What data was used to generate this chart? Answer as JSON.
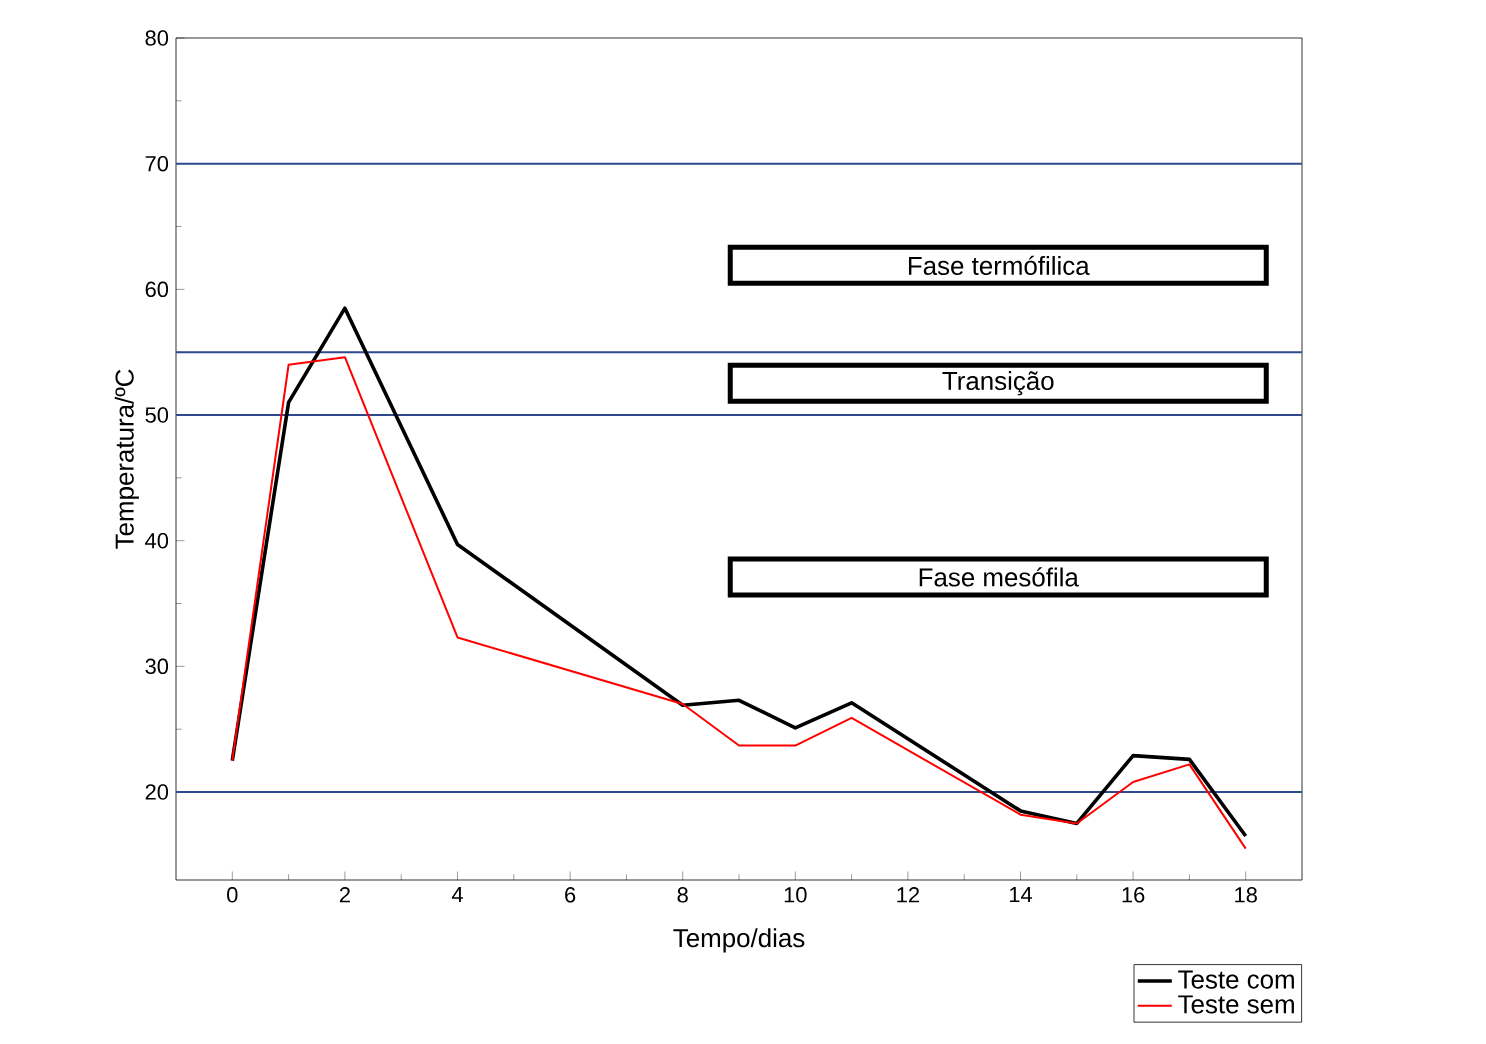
{
  "chart_data": {
    "type": "line",
    "xlabel": "Tempo/dias",
    "ylabel": "Temperatura/ºC",
    "xlim": [
      -1,
      19
    ],
    "ylim": [
      13,
      80
    ],
    "xticks": [
      0,
      2,
      4,
      6,
      8,
      10,
      12,
      14,
      16,
      18
    ],
    "yticks": [
      20,
      30,
      40,
      50,
      60,
      70,
      80
    ],
    "series": [
      {
        "name": "Teste com",
        "color": "#000000",
        "x": [
          0,
          1,
          2,
          4,
          8,
          9,
          10,
          11,
          14,
          15,
          16,
          17,
          18
        ],
        "values": [
          22.5,
          51,
          58.5,
          39.7,
          26.9,
          27.3,
          25.1,
          27.1,
          18.5,
          17.5,
          22.9,
          22.6,
          16.5
        ]
      },
      {
        "name": "Teste sem",
        "color": "#ff0000",
        "x": [
          0,
          1,
          2,
          4,
          8,
          9,
          10,
          11,
          14,
          15,
          16,
          17,
          18
        ],
        "values": [
          22.5,
          54,
          54.6,
          32.3,
          27.0,
          23.7,
          23.7,
          25.9,
          18.2,
          17.5,
          20.8,
          22.2,
          15.5
        ]
      }
    ],
    "ref_lines": [
      {
        "axis": "y",
        "value": 70,
        "color": "#2e4a8c"
      },
      {
        "axis": "y",
        "value": 55,
        "color": "#2e4a8c"
      },
      {
        "axis": "y",
        "value": 50,
        "color": "#2e4a8c"
      },
      {
        "axis": "y",
        "value": 20,
        "color": "#2e4a8c"
      }
    ],
    "annotations": [
      "Fase  termófilica",
      "Transição",
      "Fase  mesófila"
    ],
    "legend": "bottom right",
    "marker": "none",
    "line_style": "solid",
    "grid": false
  }
}
